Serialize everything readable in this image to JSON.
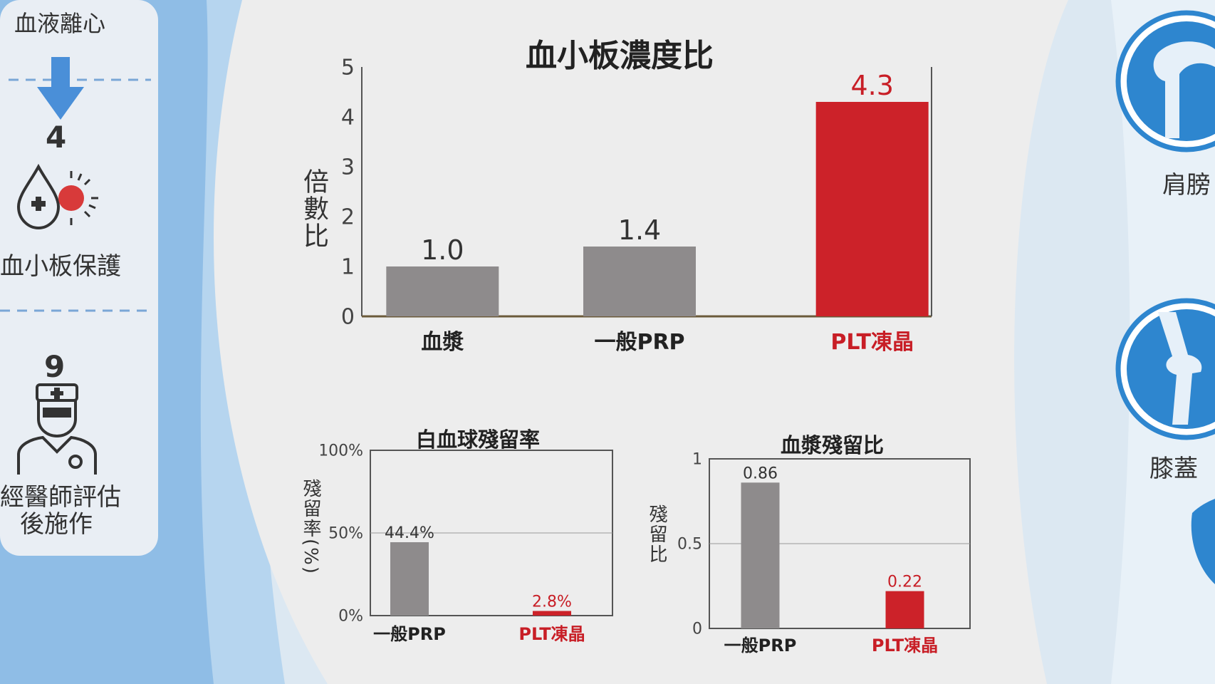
{
  "left_panel": {
    "top_label": "血液離心",
    "step4_number": "4",
    "step4_label": "血小板保護",
    "step9_number": "9",
    "step9_label_line1": "經醫師評估",
    "step9_label_line2": "後施作"
  },
  "right_panel": {
    "shoulder_label": "肩膀",
    "knee_label": "膝蓋"
  },
  "chart_data": [
    {
      "type": "bar",
      "title": "血小板濃度比",
      "ylabel": "倍數比",
      "xlabel": "",
      "categories": [
        "血漿",
        "一般PRP",
        "PLT凍晶"
      ],
      "values": [
        1.0,
        1.4,
        4.3
      ],
      "value_labels": [
        "1.0",
        "1.4",
        "4.3"
      ],
      "ylim": [
        0,
        5
      ],
      "yticks": [
        "0",
        "1",
        "2",
        "3",
        "4",
        "5"
      ],
      "grid": false,
      "colors": [
        "#8e8b8c",
        "#8e8b8c",
        "#cc2229"
      ],
      "highlight_color": "#c81e26"
    },
    {
      "type": "bar",
      "title": "白血球殘留率",
      "ylabel": "殘留率(%)",
      "xlabel": "",
      "categories": [
        "一般PRP",
        "PLT凍晶"
      ],
      "values": [
        44.4,
        2.8
      ],
      "value_labels": [
        "44.4%",
        "2.8%"
      ],
      "ylim": [
        0,
        100
      ],
      "yticks": [
        "0%",
        "50%",
        "100%"
      ],
      "grid": true,
      "colors": [
        "#8e8b8c",
        "#cc2229"
      ],
      "highlight_color": "#c81e26"
    },
    {
      "type": "bar",
      "title": "血漿殘留比",
      "ylabel": "殘留比",
      "xlabel": "",
      "categories": [
        "一般PRP",
        "PLT凍晶"
      ],
      "values": [
        0.86,
        0.22
      ],
      "value_labels": [
        "0.86",
        "0.22"
      ],
      "ylim": [
        0,
        1
      ],
      "yticks": [
        "0",
        "0.5",
        "1"
      ],
      "grid": true,
      "colors": [
        "#8e8b8c",
        "#cc2229"
      ],
      "highlight_color": "#c81e26"
    }
  ]
}
